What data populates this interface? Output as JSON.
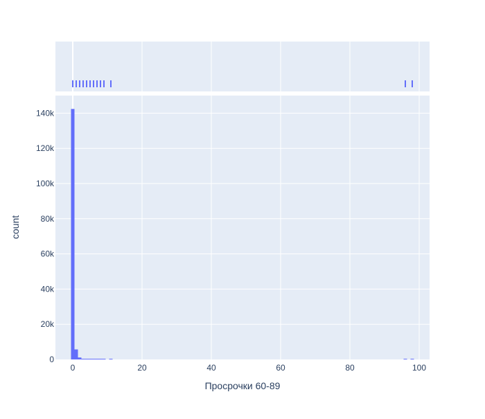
{
  "chart_data": {
    "type": "bar",
    "subtype": "histogram-with-rug-marginal",
    "xlabel": "Просрочки 60-89",
    "ylabel": "count",
    "xlim": [
      -5,
      103
    ],
    "ylim": [
      0,
      150000
    ],
    "x_ticks": [
      0,
      20,
      40,
      60,
      80,
      100
    ],
    "y_ticks": [
      0,
      20000,
      40000,
      60000,
      80000,
      100000,
      120000,
      140000
    ],
    "y_tick_labels": [
      "0",
      "20k",
      "40k",
      "60k",
      "80k",
      "100k",
      "120k",
      "140k"
    ],
    "bin_width": 1,
    "bins": [
      {
        "x0": 0,
        "count": 142400
      },
      {
        "x0": 1,
        "count": 5700
      },
      {
        "x0": 2,
        "count": 1100
      },
      {
        "x0": 3,
        "count": 320
      },
      {
        "x0": 4,
        "count": 100
      },
      {
        "x0": 5,
        "count": 35
      },
      {
        "x0": 6,
        "count": 15
      },
      {
        "x0": 7,
        "count": 8
      },
      {
        "x0": 8,
        "count": 3
      },
      {
        "x0": 9,
        "count": 1
      },
      {
        "x0": 11,
        "count": 1
      },
      {
        "x0": 96,
        "count": 20
      },
      {
        "x0": 98,
        "count": 250
      }
    ],
    "rug_values": [
      0,
      1,
      2,
      3,
      4,
      5,
      6,
      7,
      8,
      9,
      11,
      96,
      98
    ],
    "bar_color": "#636efa",
    "plot_bg": "#e5ecf6",
    "grid": true,
    "legend": "none"
  }
}
